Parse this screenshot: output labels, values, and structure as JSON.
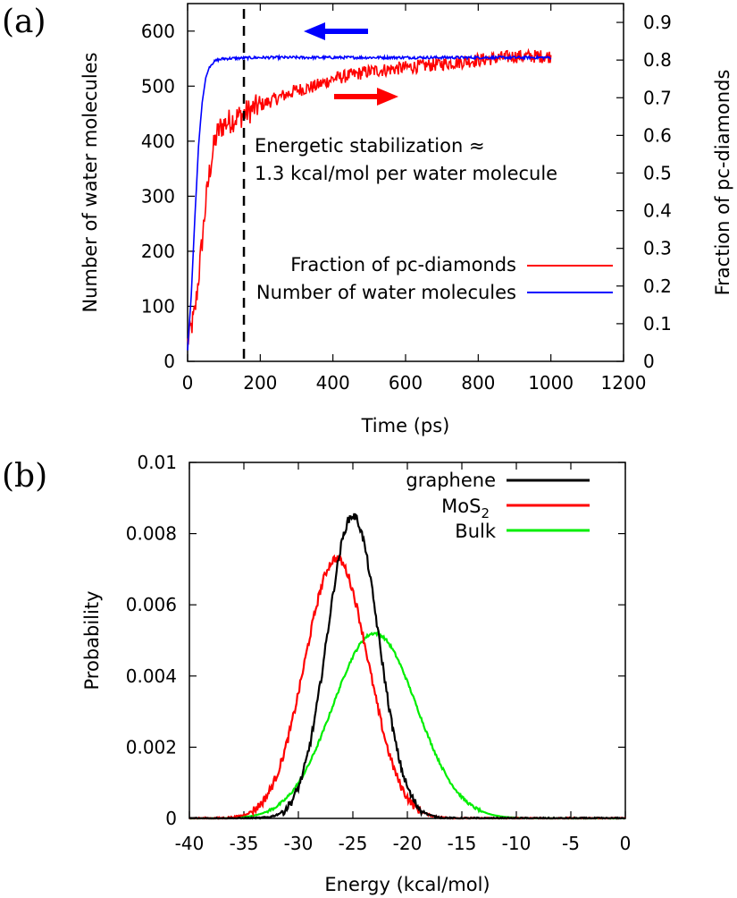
{
  "chart_data": [
    {
      "panel": "(a)",
      "type": "line",
      "xlabel": "Time (ps)",
      "ylabel": "Number of water molecules",
      "ylabel_right": "Fraction of pc-diamonds",
      "xlim": [
        0,
        1200
      ],
      "ylim": [
        0,
        650
      ],
      "ylim_right": [
        0,
        0.95
      ],
      "x_ticks": [
        0,
        200,
        400,
        600,
        800,
        1000,
        1200
      ],
      "y_ticks": [
        0,
        100,
        200,
        300,
        400,
        500,
        600
      ],
      "y_ticks_right": [
        0,
        0.1,
        0.2,
        0.3,
        0.4,
        0.5,
        0.6,
        0.7,
        0.8,
        0.9
      ],
      "legend_position": "right, middle",
      "annotation_lines": [
        "Energetic stabilization ≈",
        "1.3 kcal/mol per water molecule"
      ],
      "vline_x": 155,
      "series": [
        {
          "name": "Fraction of pc-diamonds",
          "axis": "right",
          "color": "#ff0000",
          "x": [
            0,
            10,
            20,
            30,
            40,
            50,
            60,
            70,
            80,
            90,
            100,
            120,
            140,
            160,
            180,
            200,
            250,
            300,
            350,
            400,
            450,
            500,
            600,
            700,
            800,
            900,
            1000
          ],
          "y": [
            0.05,
            0.09,
            0.13,
            0.22,
            0.32,
            0.42,
            0.5,
            0.56,
            0.6,
            0.62,
            0.63,
            0.64,
            0.65,
            0.66,
            0.67,
            0.68,
            0.7,
            0.72,
            0.73,
            0.75,
            0.76,
            0.77,
            0.78,
            0.79,
            0.8,
            0.81,
            0.81
          ]
        },
        {
          "name": "Number of water molecules",
          "axis": "left",
          "color": "#0000ff",
          "x": [
            0,
            10,
            20,
            30,
            40,
            50,
            60,
            70,
            80,
            100,
            150,
            200,
            400,
            600,
            800,
            1000
          ],
          "y": [
            20,
            120,
            260,
            390,
            470,
            515,
            535,
            543,
            547,
            550,
            551,
            552,
            552,
            552,
            552,
            552
          ]
        }
      ]
    },
    {
      "panel": "(b)",
      "type": "line",
      "xlabel": "Energy (kcal/mol)",
      "ylabel": "Probability",
      "xlim": [
        -40,
        0
      ],
      "ylim": [
        0,
        0.01
      ],
      "x_ticks": [
        -40,
        -35,
        -30,
        -25,
        -20,
        -15,
        -10,
        -5,
        0
      ],
      "y_ticks": [
        0,
        0.002,
        0.004,
        0.006,
        0.008,
        0.01
      ],
      "y_tick_labels": [
        "0",
        "0.002",
        "0.004",
        "0.006",
        "0.008",
        "0.01"
      ],
      "legend_position": "top-right",
      "series": [
        {
          "name": "graphene",
          "color": "#000000",
          "mu": -25,
          "sigma": 2.35,
          "peak": 0.0085
        },
        {
          "name": "MoS",
          "name_sub": "2",
          "color": "#ff0000",
          "mu": -26.5,
          "sigma": 2.9,
          "peak": 0.0073
        },
        {
          "name": "Bulk",
          "color": "#00ee00",
          "mu": -23,
          "sigma": 3.85,
          "peak": 0.0052
        }
      ]
    }
  ]
}
